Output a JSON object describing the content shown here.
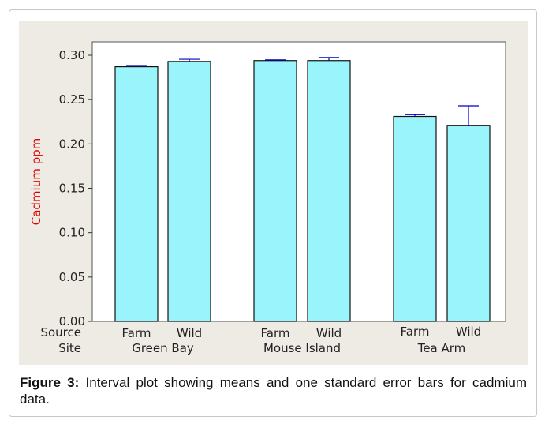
{
  "chart_data": {
    "type": "bar",
    "ylabel": "Cadmium ppm",
    "ylim": [
      0,
      0.31
    ],
    "yticks": [
      "0.00",
      "0.05",
      "0.10",
      "0.15",
      "0.20",
      "0.25",
      "0.30"
    ],
    "row_labels": {
      "source": "Source",
      "site": "Site"
    },
    "groups": [
      {
        "site": "Green Bay",
        "bars": [
          {
            "source": "Farm",
            "mean": 0.287,
            "se": 0.0015
          },
          {
            "source": "Wild",
            "mean": 0.293,
            "se": 0.0025
          }
        ]
      },
      {
        "site": "Mouse Island",
        "bars": [
          {
            "source": "Farm",
            "mean": 0.294,
            "se": 0.0008
          },
          {
            "source": "Wild",
            "mean": 0.294,
            "se": 0.0035
          }
        ]
      },
      {
        "site": "Tea Arm",
        "bars": [
          {
            "source": "Farm",
            "mean": 0.231,
            "se": 0.002
          },
          {
            "source": "Wild",
            "mean": 0.221,
            "se": 0.022
          }
        ]
      }
    ],
    "colors": {
      "bar_fill": "#99f5fb",
      "bar_stroke": "#111111",
      "error_bar": "#0000cc",
      "ylabel": "#e00000"
    },
    "grid": false
  },
  "caption": {
    "label": "Figure 3:",
    "text": " Interval plot showing means and one standard error bars for cadmium data."
  }
}
